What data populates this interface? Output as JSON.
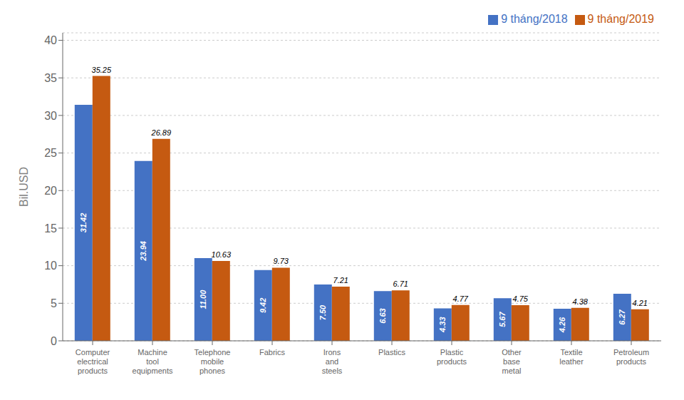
{
  "chart_data": {
    "type": "bar",
    "categories": [
      "Computer\nelectrical\nproducts",
      "Machine\ntool\nequipments",
      "Telephone\nmobile\nphones",
      "Fabrics",
      "Irons\nand\nsteels",
      "Plastics",
      "Plastic\nproducts",
      "Other\nbase\nmetal",
      "Textile\nleather",
      "Petroleum\nproducts"
    ],
    "series": [
      {
        "name": "9 tháng/2018",
        "color": "#4472C4",
        "values": [
          31.42,
          23.94,
          11.0,
          9.42,
          7.5,
          6.63,
          4.33,
          5.67,
          4.26,
          6.27
        ],
        "value_labels": [
          "31.42",
          "23.94",
          "11.00",
          "9.42",
          "7.50",
          "6.63",
          "4.33",
          "5.67",
          "4.26",
          "6.27"
        ]
      },
      {
        "name": "9 tháng/2019",
        "color": "#C55A11",
        "values": [
          35.25,
          26.89,
          10.63,
          9.73,
          7.21,
          6.71,
          4.77,
          4.75,
          4.38,
          4.21
        ],
        "value_labels": [
          "35.25",
          "26.89",
          "10.63",
          "9.73",
          "7.21",
          "6.71",
          "4.77",
          "4.75",
          "4.38",
          "4.21"
        ]
      }
    ],
    "ylabel": "Bil.USD",
    "ylim": [
      0,
      41
    ],
    "yticks": [
      0,
      5,
      10,
      15,
      20,
      25,
      30,
      35,
      40
    ],
    "grid": true,
    "legend": "upper right",
    "data_labels": true
  }
}
